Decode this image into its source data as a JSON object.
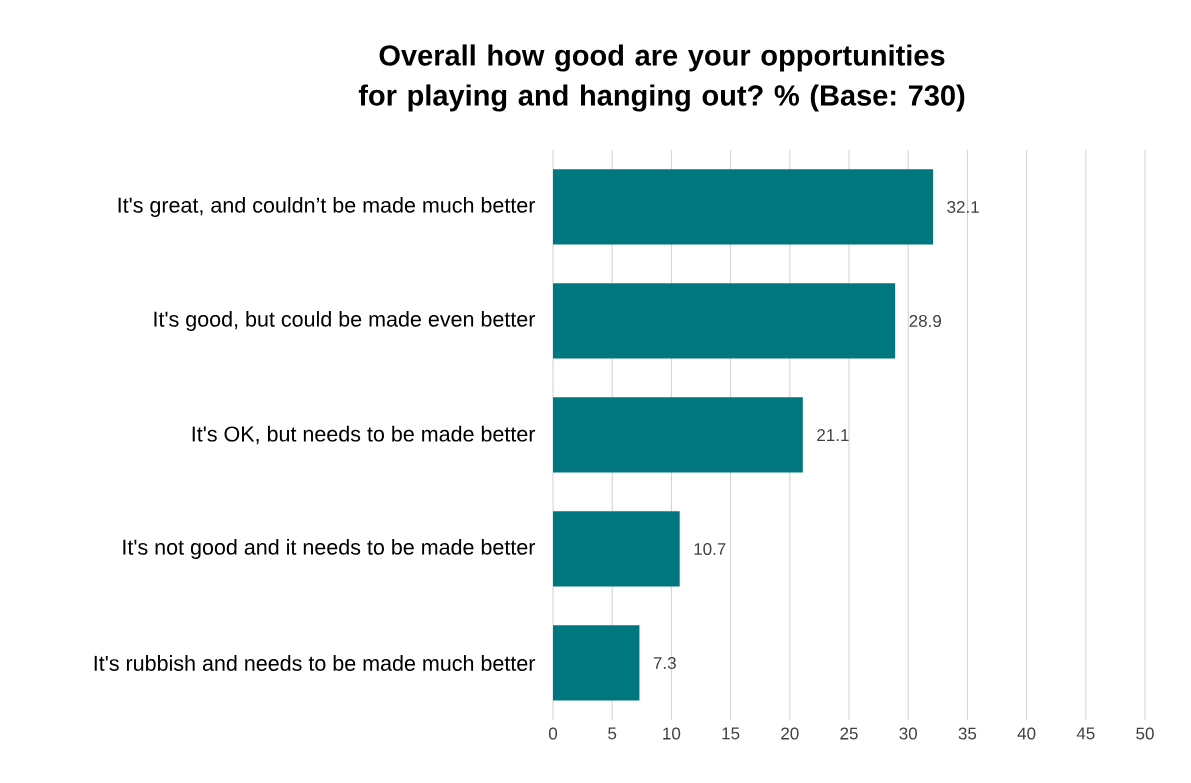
{
  "chart_data": {
    "type": "bar",
    "orientation": "horizontal",
    "title": "Overall how good are your opportunities for playing and hanging out? % (Base: 730)",
    "categories": [
      "It's great, and couldn’t be made much better",
      "It's good, but could be made even better",
      "It's OK, but needs to be made better",
      "It's not good and it needs to be made better",
      "It's rubbish and needs to be made much better"
    ],
    "values": [
      32.1,
      28.9,
      21.1,
      10.7,
      7.3
    ],
    "color": "#00777f",
    "xlim": [
      0,
      50
    ],
    "xticks": [
      0,
      5,
      10,
      15,
      20,
      25,
      30,
      35,
      40,
      45,
      50
    ],
    "grid": "x",
    "data_labels": true
  }
}
